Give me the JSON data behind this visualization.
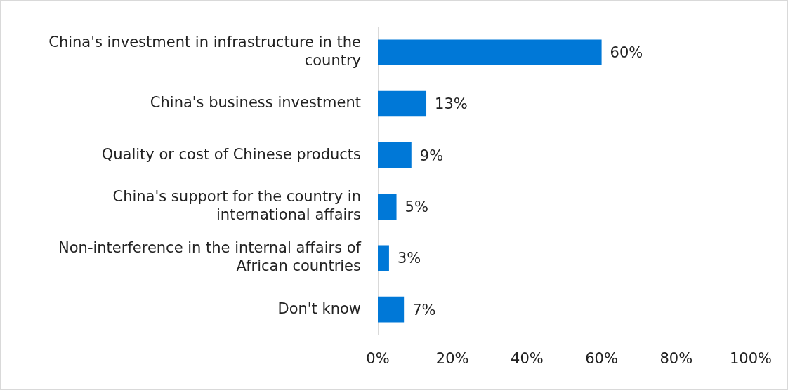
{
  "chart_data": {
    "type": "bar",
    "orientation": "horizontal",
    "categories": [
      "China's investment in infrastructure in the country",
      "China's business investment",
      "Quality or cost of Chinese products",
      "China's support for the country in international affairs",
      "Non-interference in the internal affairs of African countries",
      "Don't know"
    ],
    "values": [
      60,
      13,
      9,
      5,
      3,
      7
    ],
    "color": "#0078d7",
    "value_labels": [
      "60%",
      "13%",
      "9%",
      "5%",
      "3%",
      "7%"
    ],
    "xlim": [
      0,
      100
    ],
    "xticks": [
      {
        "value": 0,
        "label": "0%"
      },
      {
        "value": 20,
        "label": "20%"
      },
      {
        "value": 40,
        "label": "40%"
      },
      {
        "value": 60,
        "label": "60%"
      },
      {
        "value": 80,
        "label": "80%"
      },
      {
        "value": 100,
        "label": "100%"
      }
    ],
    "grid": false,
    "legend": false
  }
}
